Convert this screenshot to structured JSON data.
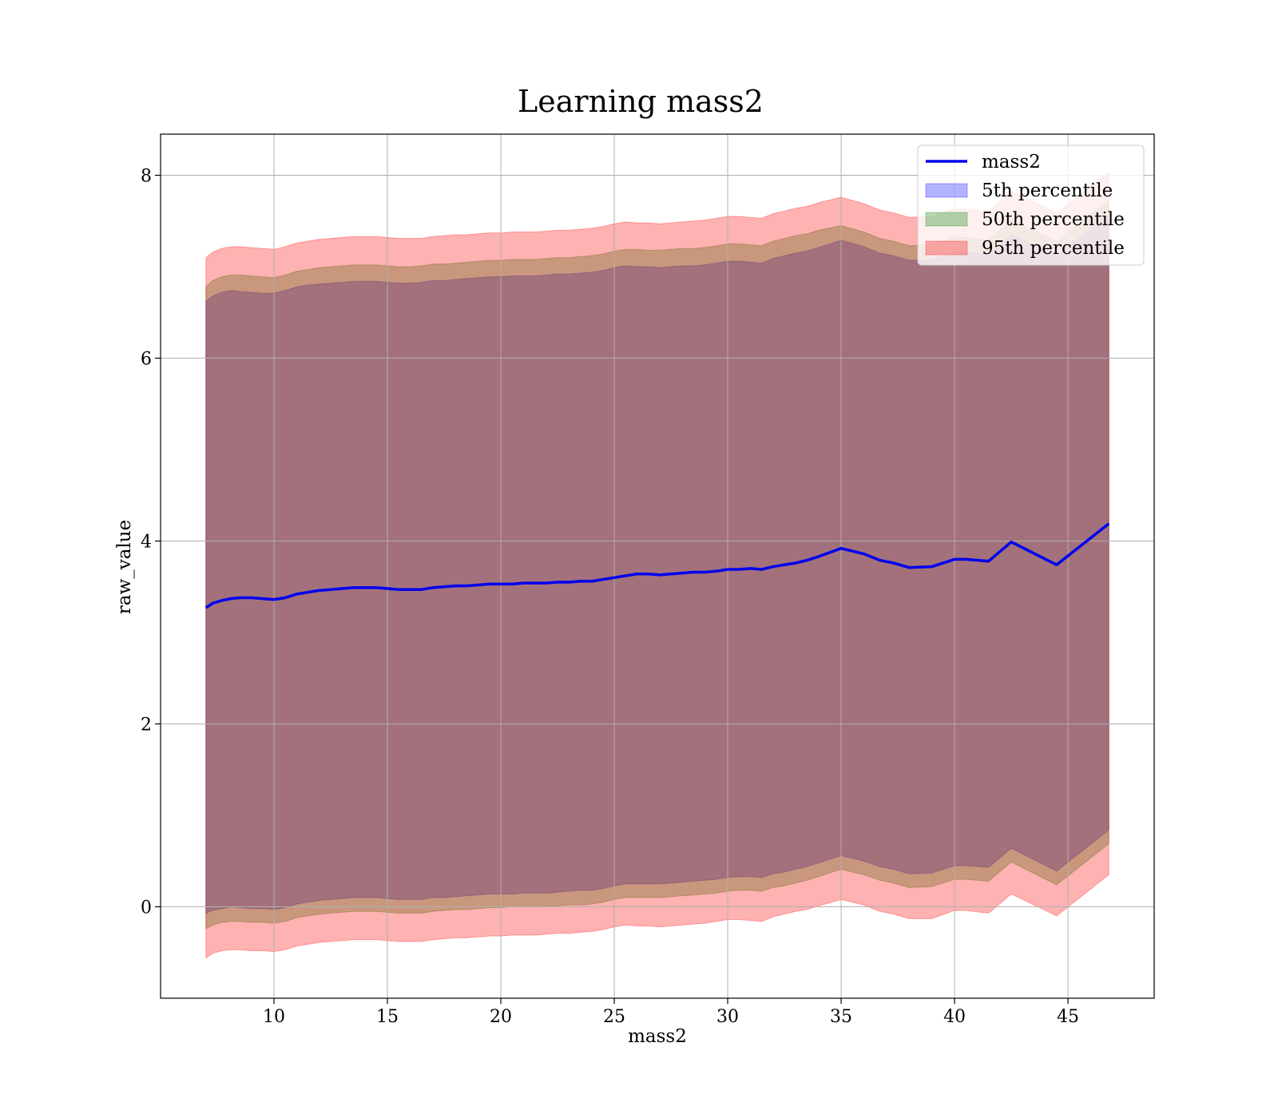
{
  "chart_data": {
    "type": "area",
    "title": "Learning mass2",
    "xlabel": "mass2",
    "ylabel": "raw_value",
    "xlim": [
      5,
      48.8
    ],
    "ylim": [
      -1,
      8.45
    ],
    "xticks": [
      10,
      15,
      20,
      25,
      30,
      35,
      40,
      45
    ],
    "yticks": [
      0,
      2,
      4,
      6,
      8
    ],
    "grid": true,
    "legend_position": "top-right",
    "x": [
      7,
      7.3,
      7.7,
      8.1,
      8.5,
      9,
      9.5,
      10,
      10.5,
      11,
      11.5,
      12,
      12.5,
      13,
      13.5,
      14,
      14.5,
      15,
      15.5,
      16,
      16.5,
      17,
      17.5,
      18,
      18.5,
      19,
      19.5,
      20,
      20.5,
      21,
      21.5,
      22,
      22.5,
      23,
      23.5,
      24,
      24.5,
      25,
      25.5,
      26,
      26.5,
      27,
      27.5,
      28,
      28.5,
      29,
      29.5,
      30,
      30.5,
      31,
      31.5,
      32,
      32.5,
      33,
      33.5,
      34,
      35,
      36,
      36.7,
      37.3,
      38,
      39,
      40,
      40.5,
      41.5,
      42.5,
      44.5,
      46.8
    ],
    "series": [
      {
        "name": "mass2",
        "color": "#0000ee",
        "values": [
          3.27,
          3.32,
          3.35,
          3.37,
          3.38,
          3.38,
          3.37,
          3.36,
          3.38,
          3.42,
          3.44,
          3.46,
          3.47,
          3.48,
          3.49,
          3.49,
          3.49,
          3.48,
          3.47,
          3.47,
          3.47,
          3.49,
          3.5,
          3.51,
          3.51,
          3.52,
          3.53,
          3.53,
          3.53,
          3.54,
          3.54,
          3.54,
          3.55,
          3.55,
          3.56,
          3.56,
          3.58,
          3.6,
          3.62,
          3.64,
          3.64,
          3.63,
          3.64,
          3.65,
          3.66,
          3.66,
          3.67,
          3.69,
          3.69,
          3.7,
          3.69,
          3.72,
          3.74,
          3.76,
          3.79,
          3.83,
          3.92,
          3.86,
          3.79,
          3.76,
          3.71,
          3.72,
          3.8,
          3.8,
          3.78,
          3.99,
          3.74,
          4.19
        ]
      }
    ],
    "bands": [
      {
        "name": "5th percentile",
        "color": "#0000ff",
        "upper": [
          6.62,
          6.68,
          6.72,
          6.74,
          6.73,
          6.72,
          6.71,
          6.71,
          6.74,
          6.78,
          6.8,
          6.81,
          6.82,
          6.83,
          6.84,
          6.84,
          6.84,
          6.83,
          6.82,
          6.82,
          6.83,
          6.85,
          6.85,
          6.86,
          6.87,
          6.88,
          6.89,
          6.89,
          6.9,
          6.9,
          6.9,
          6.91,
          6.92,
          6.92,
          6.93,
          6.94,
          6.96,
          6.99,
          7.01,
          7.0,
          7.0,
          6.99,
          7.0,
          7.01,
          7.01,
          7.02,
          7.04,
          7.06,
          7.06,
          7.05,
          7.04,
          7.09,
          7.12,
          7.15,
          7.17,
          7.21,
          7.29,
          7.22,
          7.15,
          7.12,
          7.07,
          7.07,
          7.16,
          7.16,
          7.13,
          7.35,
          7.12,
          7.57
        ],
        "lower": [
          -0.07,
          -0.04,
          -0.02,
          -0.0,
          -0.01,
          -0.02,
          -0.02,
          -0.03,
          -0.01,
          0.03,
          0.05,
          0.07,
          0.08,
          0.09,
          0.1,
          0.1,
          0.1,
          0.09,
          0.08,
          0.08,
          0.08,
          0.1,
          0.1,
          0.11,
          0.12,
          0.13,
          0.14,
          0.14,
          0.14,
          0.15,
          0.15,
          0.15,
          0.16,
          0.17,
          0.18,
          0.18,
          0.2,
          0.23,
          0.25,
          0.25,
          0.25,
          0.25,
          0.26,
          0.27,
          0.28,
          0.29,
          0.3,
          0.32,
          0.33,
          0.33,
          0.32,
          0.36,
          0.38,
          0.41,
          0.44,
          0.48,
          0.56,
          0.5,
          0.44,
          0.41,
          0.36,
          0.37,
          0.45,
          0.45,
          0.43,
          0.64,
          0.39,
          0.84
        ]
      },
      {
        "name": "50th percentile",
        "color": "#008000",
        "upper": [
          6.78,
          6.85,
          6.89,
          6.91,
          6.91,
          6.9,
          6.89,
          6.88,
          6.91,
          6.95,
          6.97,
          6.99,
          7.0,
          7.01,
          7.02,
          7.02,
          7.02,
          7.01,
          7.0,
          7.0,
          7.01,
          7.03,
          7.03,
          7.04,
          7.05,
          7.06,
          7.07,
          7.07,
          7.08,
          7.08,
          7.08,
          7.09,
          7.1,
          7.1,
          7.11,
          7.12,
          7.14,
          7.17,
          7.19,
          7.19,
          7.18,
          7.18,
          7.19,
          7.2,
          7.2,
          7.21,
          7.23,
          7.25,
          7.25,
          7.24,
          7.23,
          7.28,
          7.31,
          7.34,
          7.36,
          7.4,
          7.45,
          7.38,
          7.31,
          7.28,
          7.23,
          7.24,
          7.32,
          7.32,
          7.29,
          7.51,
          7.28,
          7.73
        ],
        "lower": [
          -0.24,
          -0.2,
          -0.17,
          -0.16,
          -0.16,
          -0.17,
          -0.17,
          -0.18,
          -0.16,
          -0.12,
          -0.1,
          -0.08,
          -0.07,
          -0.06,
          -0.05,
          -0.05,
          -0.05,
          -0.06,
          -0.07,
          -0.07,
          -0.07,
          -0.05,
          -0.04,
          -0.03,
          -0.03,
          -0.02,
          -0.01,
          -0.01,
          -0.0,
          0.0,
          0.0,
          0.0,
          0.01,
          0.02,
          0.02,
          0.03,
          0.05,
          0.08,
          0.1,
          0.1,
          0.1,
          0.1,
          0.11,
          0.12,
          0.13,
          0.14,
          0.15,
          0.17,
          0.18,
          0.18,
          0.17,
          0.21,
          0.23,
          0.26,
          0.29,
          0.33,
          0.41,
          0.35,
          0.29,
          0.26,
          0.21,
          0.22,
          0.3,
          0.3,
          0.28,
          0.49,
          0.24,
          0.69
        ]
      },
      {
        "name": "95th percentile",
        "color": "#ff0000",
        "upper": [
          7.1,
          7.16,
          7.2,
          7.22,
          7.22,
          7.21,
          7.2,
          7.19,
          7.22,
          7.26,
          7.28,
          7.3,
          7.31,
          7.32,
          7.33,
          7.33,
          7.33,
          7.32,
          7.31,
          7.31,
          7.31,
          7.33,
          7.34,
          7.35,
          7.35,
          7.36,
          7.37,
          7.37,
          7.38,
          7.38,
          7.38,
          7.39,
          7.4,
          7.4,
          7.41,
          7.42,
          7.44,
          7.47,
          7.49,
          7.48,
          7.48,
          7.47,
          7.48,
          7.49,
          7.5,
          7.51,
          7.53,
          7.55,
          7.55,
          7.54,
          7.53,
          7.58,
          7.61,
          7.64,
          7.66,
          7.7,
          7.76,
          7.69,
          7.62,
          7.59,
          7.54,
          7.55,
          7.63,
          7.63,
          7.6,
          7.82,
          7.59,
          8.04
        ],
        "lower": [
          -0.56,
          -0.51,
          -0.48,
          -0.47,
          -0.47,
          -0.48,
          -0.48,
          -0.49,
          -0.47,
          -0.43,
          -0.41,
          -0.39,
          -0.38,
          -0.37,
          -0.36,
          -0.36,
          -0.36,
          -0.37,
          -0.38,
          -0.38,
          -0.38,
          -0.36,
          -0.35,
          -0.34,
          -0.34,
          -0.33,
          -0.32,
          -0.32,
          -0.31,
          -0.31,
          -0.31,
          -0.3,
          -0.29,
          -0.29,
          -0.28,
          -0.27,
          -0.25,
          -0.22,
          -0.2,
          -0.21,
          -0.21,
          -0.22,
          -0.21,
          -0.2,
          -0.19,
          -0.18,
          -0.16,
          -0.14,
          -0.14,
          -0.15,
          -0.16,
          -0.11,
          -0.08,
          -0.05,
          -0.03,
          0.01,
          0.08,
          0.02,
          -0.05,
          -0.08,
          -0.13,
          -0.13,
          -0.04,
          -0.04,
          -0.07,
          0.14,
          -0.1,
          0.35
        ]
      }
    ]
  }
}
